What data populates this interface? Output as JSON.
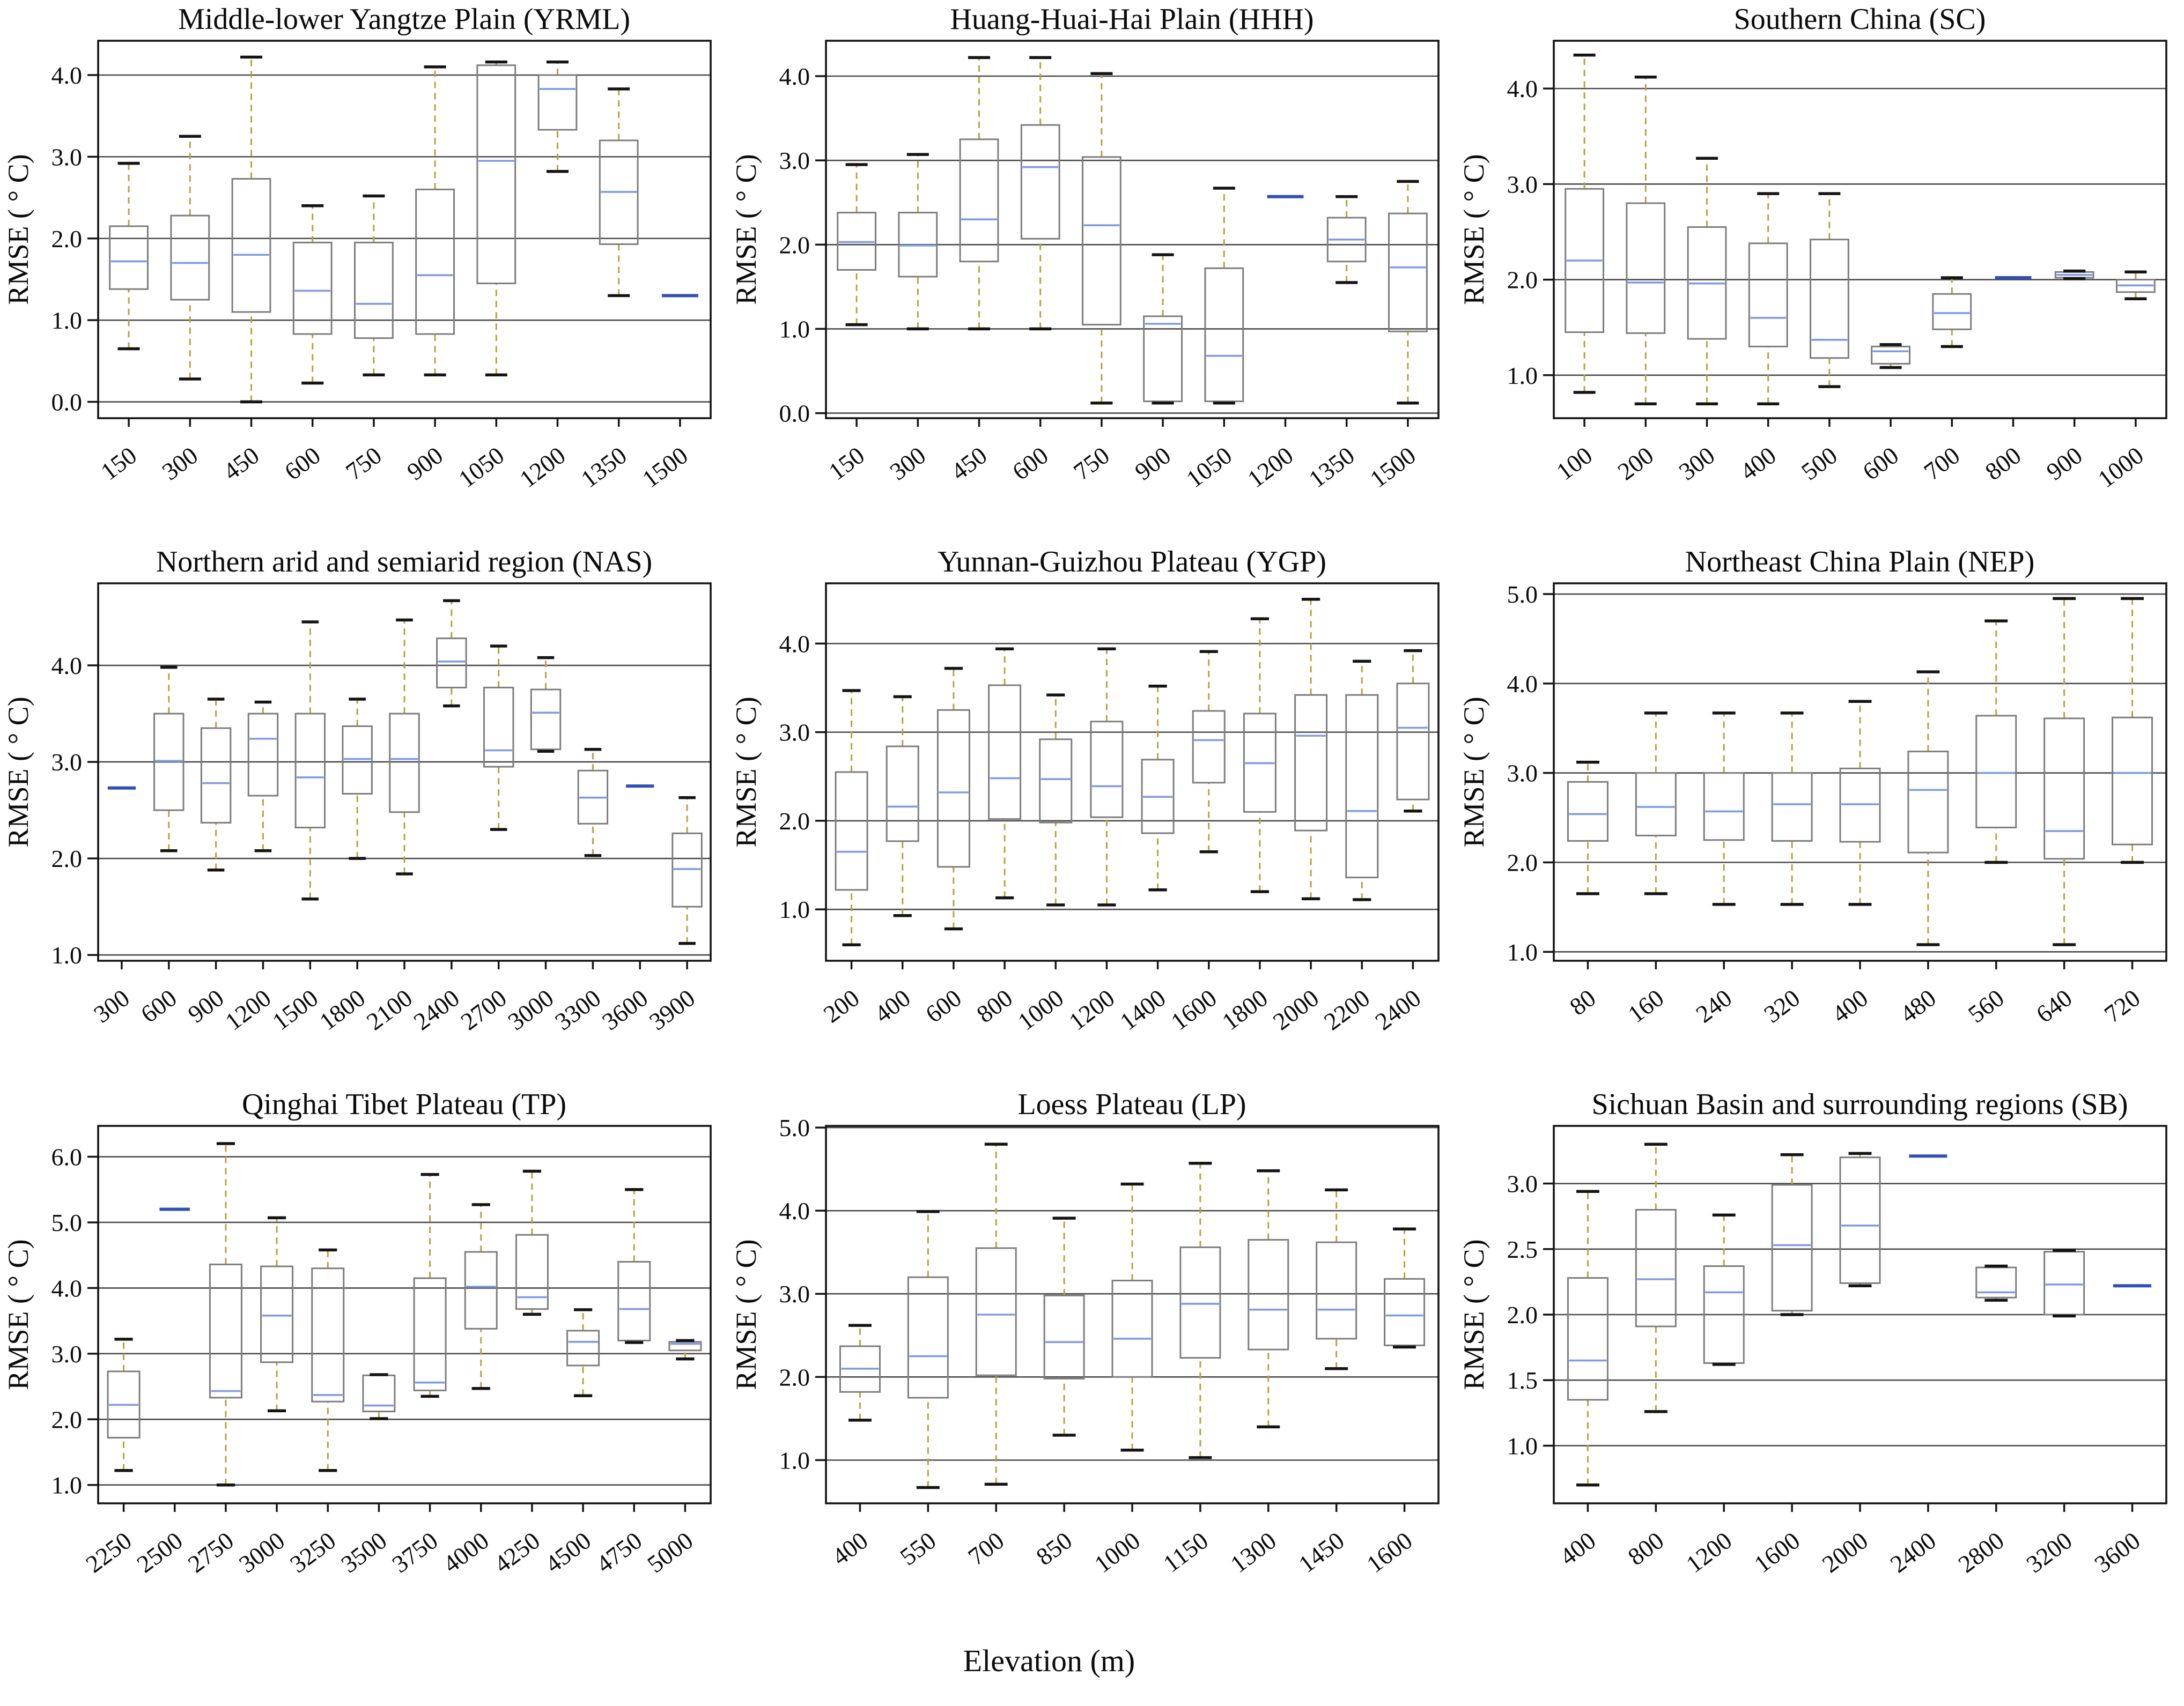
{
  "page": {
    "xlabel": "Elevation (m)",
    "ylabel": "RMSE ( ° C)"
  },
  "colors": {
    "grid": "#4a4a4a",
    "axis": "#141414",
    "box": "#7d7d7d",
    "median": "#7e9be4",
    "whisker": "#b3a43c",
    "cap": "#141414",
    "flat": "#3050b8"
  },
  "chart_data": [
    {
      "type": "box",
      "title": "Middle-lower Yangtze Plain (YRML)",
      "region_code": "YRML",
      "categories": [
        "150",
        "300",
        "450",
        "600",
        "750",
        "900",
        "1050",
        "1200",
        "1350",
        "1500"
      ],
      "ylim": [
        -0.2,
        4.42
      ],
      "yticks": [
        0,
        1,
        2,
        3,
        4
      ],
      "ytick_labels": [
        "0.0",
        "1.0",
        "2.0",
        "3.0",
        "4.0"
      ],
      "boxes": [
        {
          "w_lo": 0.65,
          "q1": 1.38,
          "med": 1.72,
          "q3": 2.15,
          "w_hi": 2.92
        },
        {
          "w_lo": 0.28,
          "q1": 1.25,
          "med": 1.7,
          "q3": 2.28,
          "w_hi": 3.25
        },
        {
          "w_lo": 0.0,
          "q1": 1.1,
          "med": 1.8,
          "q3": 2.73,
          "w_hi": 4.22
        },
        {
          "w_lo": 0.23,
          "q1": 0.83,
          "med": 1.36,
          "q3": 1.95,
          "w_hi": 2.4
        },
        {
          "w_lo": 0.33,
          "q1": 0.78,
          "med": 1.2,
          "q3": 1.95,
          "w_hi": 2.52
        },
        {
          "w_lo": 0.33,
          "q1": 0.83,
          "med": 1.55,
          "q3": 2.6,
          "w_hi": 4.1
        },
        {
          "w_lo": 0.33,
          "q1": 1.45,
          "med": 2.95,
          "q3": 4.12,
          "w_hi": 4.16
        },
        {
          "w_lo": 2.82,
          "q1": 3.33,
          "med": 3.83,
          "q3": 4.0,
          "w_hi": 4.16
        },
        {
          "w_lo": 1.3,
          "q1": 1.93,
          "med": 2.57,
          "q3": 3.2,
          "w_hi": 3.83
        },
        {
          "flat": 1.3
        }
      ]
    },
    {
      "type": "box",
      "title": "Huang-Huai-Hai Plain (HHH)",
      "region_code": "HHH",
      "categories": [
        "150",
        "300",
        "450",
        "600",
        "750",
        "900",
        "1050",
        "1200",
        "1350",
        "1500"
      ],
      "ylim": [
        -0.06,
        4.42
      ],
      "yticks": [
        0,
        1,
        2,
        3,
        4
      ],
      "ytick_labels": [
        "0.0",
        "1.0",
        "2.0",
        "3.0",
        "4.0"
      ],
      "boxes": [
        {
          "w_lo": 1.05,
          "q1": 1.7,
          "med": 2.03,
          "q3": 2.38,
          "w_hi": 2.95
        },
        {
          "w_lo": 1.0,
          "q1": 1.62,
          "med": 1.99,
          "q3": 2.38,
          "w_hi": 3.07
        },
        {
          "w_lo": 1.0,
          "q1": 1.8,
          "med": 2.3,
          "q3": 3.25,
          "w_hi": 4.22
        },
        {
          "w_lo": 1.0,
          "q1": 2.07,
          "med": 2.92,
          "q3": 3.42,
          "w_hi": 4.22
        },
        {
          "w_lo": 0.12,
          "q1": 1.05,
          "med": 2.23,
          "q3": 3.04,
          "w_hi": 4.03
        },
        {
          "w_lo": 0.12,
          "q1": 0.14,
          "med": 1.06,
          "q3": 1.15,
          "w_hi": 1.88
        },
        {
          "w_lo": 0.12,
          "q1": 0.14,
          "med": 0.68,
          "q3": 1.72,
          "w_hi": 2.67
        },
        {
          "flat": 2.57
        },
        {
          "w_lo": 1.55,
          "q1": 1.8,
          "med": 2.06,
          "q3": 2.32,
          "w_hi": 2.57
        },
        {
          "w_lo": 0.12,
          "q1": 0.97,
          "med": 1.73,
          "q3": 2.37,
          "w_hi": 2.75
        }
      ]
    },
    {
      "type": "box",
      "title": "Southern China (SC)",
      "region_code": "SC",
      "categories": [
        "100",
        "200",
        "300",
        "400",
        "500",
        "600",
        "700",
        "800",
        "900",
        "1000"
      ],
      "ylim": [
        0.55,
        4.5
      ],
      "yticks": [
        1,
        2,
        3,
        4
      ],
      "ytick_labels": [
        "1.0",
        "2.0",
        "3.0",
        "4.0"
      ],
      "boxes": [
        {
          "w_lo": 0.82,
          "q1": 1.45,
          "med": 2.2,
          "q3": 2.95,
          "w_hi": 4.35
        },
        {
          "w_lo": 0.7,
          "q1": 1.44,
          "med": 1.97,
          "q3": 2.8,
          "w_hi": 4.12
        },
        {
          "w_lo": 0.7,
          "q1": 1.38,
          "med": 1.96,
          "q3": 2.55,
          "w_hi": 3.27
        },
        {
          "w_lo": 0.7,
          "q1": 1.3,
          "med": 1.6,
          "q3": 2.38,
          "w_hi": 2.9
        },
        {
          "w_lo": 0.88,
          "q1": 1.18,
          "med": 1.37,
          "q3": 2.42,
          "w_hi": 2.9
        },
        {
          "w_lo": 1.08,
          "q1": 1.12,
          "med": 1.25,
          "q3": 1.3,
          "w_hi": 1.32
        },
        {
          "w_lo": 1.3,
          "q1": 1.48,
          "med": 1.65,
          "q3": 1.85,
          "w_hi": 2.02
        },
        {
          "flat": 2.02
        },
        {
          "w_lo": 2.01,
          "q1": 2.02,
          "med": 2.05,
          "q3": 2.08,
          "w_hi": 2.09
        },
        {
          "w_lo": 1.8,
          "q1": 1.87,
          "med": 1.94,
          "q3": 2.0,
          "w_hi": 2.08
        }
      ]
    },
    {
      "type": "box",
      "title": "Northern arid and semiarid region (NAS)",
      "region_code": "NAS",
      "categories": [
        "300",
        "600",
        "900",
        "1200",
        "1500",
        "1800",
        "2100",
        "2400",
        "2700",
        "3000",
        "3300",
        "3600",
        "3900"
      ],
      "ylim": [
        0.94,
        4.85
      ],
      "yticks": [
        1,
        2,
        3,
        4
      ],
      "ytick_labels": [
        "1.0",
        "2.0",
        "3.0",
        "4.0"
      ],
      "boxes": [
        {
          "flat": 2.73
        },
        {
          "w_lo": 2.08,
          "q1": 2.5,
          "med": 3.01,
          "q3": 3.5,
          "w_hi": 3.98
        },
        {
          "w_lo": 1.88,
          "q1": 2.37,
          "med": 2.78,
          "q3": 3.35,
          "w_hi": 3.65
        },
        {
          "w_lo": 2.08,
          "q1": 2.65,
          "med": 3.24,
          "q3": 3.5,
          "w_hi": 3.62
        },
        {
          "w_lo": 1.58,
          "q1": 2.32,
          "med": 2.84,
          "q3": 3.5,
          "w_hi": 4.45
        },
        {
          "w_lo": 2.0,
          "q1": 2.67,
          "med": 3.03,
          "q3": 3.37,
          "w_hi": 3.65
        },
        {
          "w_lo": 1.84,
          "q1": 2.48,
          "med": 3.03,
          "q3": 3.5,
          "w_hi": 4.47
        },
        {
          "w_lo": 3.58,
          "q1": 3.77,
          "med": 4.04,
          "q3": 4.28,
          "w_hi": 4.67
        },
        {
          "w_lo": 2.3,
          "q1": 2.95,
          "med": 3.12,
          "q3": 3.77,
          "w_hi": 4.2
        },
        {
          "w_lo": 3.11,
          "q1": 3.13,
          "med": 3.51,
          "q3": 3.75,
          "w_hi": 4.08
        },
        {
          "w_lo": 2.03,
          "q1": 2.36,
          "med": 2.63,
          "q3": 2.91,
          "w_hi": 3.13
        },
        {
          "flat": 2.75
        },
        {
          "w_lo": 1.12,
          "q1": 1.5,
          "med": 1.89,
          "q3": 2.26,
          "w_hi": 2.63
        }
      ]
    },
    {
      "type": "box",
      "title": "Yunnan-Guizhou Plateau (YGP)",
      "region_code": "YGP",
      "categories": [
        "200",
        "400",
        "600",
        "800",
        "1000",
        "1200",
        "1400",
        "1600",
        "1800",
        "2000",
        "2200",
        "2400"
      ],
      "ylim": [
        0.42,
        4.68
      ],
      "yticks": [
        1,
        2,
        3,
        4
      ],
      "ytick_labels": [
        "1.0",
        "2.0",
        "3.0",
        "4.0"
      ],
      "boxes": [
        {
          "w_lo": 0.6,
          "q1": 1.22,
          "med": 1.65,
          "q3": 2.55,
          "w_hi": 3.47
        },
        {
          "w_lo": 0.93,
          "q1": 1.77,
          "med": 2.16,
          "q3": 2.84,
          "w_hi": 3.4
        },
        {
          "w_lo": 0.78,
          "q1": 1.48,
          "med": 2.32,
          "q3": 3.25,
          "w_hi": 3.72
        },
        {
          "w_lo": 1.13,
          "q1": 2.02,
          "med": 2.48,
          "q3": 3.53,
          "w_hi": 3.94
        },
        {
          "w_lo": 1.05,
          "q1": 1.98,
          "med": 2.47,
          "q3": 2.92,
          "w_hi": 3.42
        },
        {
          "w_lo": 1.05,
          "q1": 2.04,
          "med": 2.39,
          "q3": 3.12,
          "w_hi": 3.94
        },
        {
          "w_lo": 1.22,
          "q1": 1.86,
          "med": 2.27,
          "q3": 2.69,
          "w_hi": 3.52
        },
        {
          "w_lo": 1.65,
          "q1": 2.43,
          "med": 2.91,
          "q3": 3.24,
          "w_hi": 3.91
        },
        {
          "w_lo": 1.2,
          "q1": 2.1,
          "med": 2.65,
          "q3": 3.21,
          "w_hi": 4.28
        },
        {
          "w_lo": 1.12,
          "q1": 1.89,
          "med": 2.96,
          "q3": 3.42,
          "w_hi": 4.5
        },
        {
          "w_lo": 1.11,
          "q1": 1.36,
          "med": 2.11,
          "q3": 3.42,
          "w_hi": 3.8
        },
        {
          "w_lo": 2.11,
          "q1": 2.24,
          "med": 3.05,
          "q3": 3.55,
          "w_hi": 3.92
        }
      ]
    },
    {
      "type": "box",
      "title": "Northeast China Plain (NEP)",
      "region_code": "NEP",
      "categories": [
        "80",
        "160",
        "240",
        "320",
        "400",
        "480",
        "560",
        "640",
        "720"
      ],
      "ylim": [
        0.9,
        5.12
      ],
      "yticks": [
        1,
        2,
        3,
        4,
        5
      ],
      "ytick_labels": [
        "1.0",
        "2.0",
        "3.0",
        "4.0",
        "5.0"
      ],
      "boxes": [
        {
          "w_lo": 1.65,
          "q1": 2.24,
          "med": 2.54,
          "q3": 2.9,
          "w_hi": 3.12
        },
        {
          "w_lo": 1.65,
          "q1": 2.3,
          "med": 2.62,
          "q3": 3.0,
          "w_hi": 3.67
        },
        {
          "w_lo": 1.53,
          "q1": 2.25,
          "med": 2.57,
          "q3": 3.0,
          "w_hi": 3.67
        },
        {
          "w_lo": 1.53,
          "q1": 2.24,
          "med": 2.65,
          "q3": 3.0,
          "w_hi": 3.67
        },
        {
          "w_lo": 1.53,
          "q1": 2.23,
          "med": 2.65,
          "q3": 3.05,
          "w_hi": 3.8
        },
        {
          "w_lo": 1.08,
          "q1": 2.11,
          "med": 2.81,
          "q3": 3.24,
          "w_hi": 4.13
        },
        {
          "w_lo": 2.0,
          "q1": 2.39,
          "med": 3.0,
          "q3": 3.64,
          "w_hi": 4.7
        },
        {
          "w_lo": 1.08,
          "q1": 2.04,
          "med": 2.35,
          "q3": 3.61,
          "w_hi": 4.95
        },
        {
          "w_lo": 2.0,
          "q1": 2.2,
          "med": 3.0,
          "q3": 3.62,
          "w_hi": 4.95
        }
      ]
    },
    {
      "type": "box",
      "title": "Qinghai Tibet Plateau (TP)",
      "region_code": "TP",
      "categories": [
        "2250",
        "2500",
        "2750",
        "3000",
        "3250",
        "3500",
        "3750",
        "4000",
        "4250",
        "4500",
        "4750",
        "5000"
      ],
      "ylim": [
        0.72,
        6.47
      ],
      "yticks": [
        1,
        2,
        3,
        4,
        5,
        6
      ],
      "ytick_labels": [
        "1.0",
        "2.0",
        "3.0",
        "4.0",
        "5.0",
        "6.0"
      ],
      "boxes": [
        {
          "w_lo": 1.22,
          "q1": 1.72,
          "med": 2.22,
          "q3": 2.73,
          "w_hi": 3.22
        },
        {
          "flat": 5.2
        },
        {
          "w_lo": 1.0,
          "q1": 2.33,
          "med": 2.43,
          "q3": 4.36,
          "w_hi": 6.2
        },
        {
          "w_lo": 2.13,
          "q1": 2.87,
          "med": 3.58,
          "q3": 4.33,
          "w_hi": 5.07
        },
        {
          "w_lo": 1.22,
          "q1": 2.27,
          "med": 2.37,
          "q3": 4.3,
          "w_hi": 4.58
        },
        {
          "w_lo": 2.01,
          "q1": 2.12,
          "med": 2.21,
          "q3": 2.67,
          "w_hi": 2.68
        },
        {
          "w_lo": 2.35,
          "q1": 2.44,
          "med": 2.56,
          "q3": 4.15,
          "w_hi": 5.73
        },
        {
          "w_lo": 2.47,
          "q1": 3.38,
          "med": 4.02,
          "q3": 4.55,
          "w_hi": 5.27
        },
        {
          "w_lo": 3.6,
          "q1": 3.68,
          "med": 3.86,
          "q3": 4.81,
          "w_hi": 5.78
        },
        {
          "w_lo": 2.36,
          "q1": 2.82,
          "med": 3.18,
          "q3": 3.35,
          "w_hi": 3.67
        },
        {
          "w_lo": 3.17,
          "q1": 3.2,
          "med": 3.68,
          "q3": 4.4,
          "w_hi": 5.5
        },
        {
          "w_lo": 2.92,
          "q1": 3.05,
          "med": 3.15,
          "q3": 3.18,
          "w_hi": 3.2
        }
      ]
    },
    {
      "type": "box",
      "title": "Loess Plateau (LP)",
      "region_code": "LP",
      "categories": [
        "400",
        "550",
        "700",
        "850",
        "1000",
        "1150",
        "1300",
        "1450",
        "1600"
      ],
      "ylim": [
        0.48,
        5.02
      ],
      "yticks": [
        1,
        2,
        3,
        4,
        5
      ],
      "ytick_labels": [
        "1.0",
        "2.0",
        "3.0",
        "4.0",
        "5.0"
      ],
      "boxes": [
        {
          "w_lo": 1.48,
          "q1": 1.82,
          "med": 2.1,
          "q3": 2.37,
          "w_hi": 2.62
        },
        {
          "w_lo": 0.67,
          "q1": 1.75,
          "med": 2.25,
          "q3": 3.2,
          "w_hi": 3.99
        },
        {
          "w_lo": 0.71,
          "q1": 2.02,
          "med": 2.75,
          "q3": 3.55,
          "w_hi": 4.8
        },
        {
          "w_lo": 1.3,
          "q1": 1.98,
          "med": 2.42,
          "q3": 2.98,
          "w_hi": 3.91
        },
        {
          "w_lo": 1.12,
          "q1": 2.0,
          "med": 2.46,
          "q3": 3.16,
          "w_hi": 4.32
        },
        {
          "w_lo": 1.03,
          "q1": 2.23,
          "med": 2.88,
          "q3": 3.56,
          "w_hi": 4.57
        },
        {
          "w_lo": 1.4,
          "q1": 2.33,
          "med": 2.81,
          "q3": 3.65,
          "w_hi": 4.48
        },
        {
          "w_lo": 2.1,
          "q1": 2.46,
          "med": 2.81,
          "q3": 3.62,
          "w_hi": 4.25
        },
        {
          "w_lo": 2.36,
          "q1": 2.38,
          "med": 2.74,
          "q3": 3.18,
          "w_hi": 3.78
        }
      ]
    },
    {
      "type": "box",
      "title": "Sichuan Basin and surrounding regions (SB)",
      "region_code": "SB",
      "categories": [
        "400",
        "800",
        "1200",
        "1600",
        "2000",
        "2400",
        "2800",
        "3200",
        "3600"
      ],
      "ylim": [
        0.56,
        3.44
      ],
      "yticks": [
        1.0,
        1.5,
        2.0,
        2.5,
        3.0
      ],
      "ytick_labels": [
        "1.0",
        "1.5",
        "2.0",
        "2.5",
        "3.0"
      ],
      "boxes": [
        {
          "w_lo": 0.7,
          "q1": 1.35,
          "med": 1.65,
          "q3": 2.28,
          "w_hi": 2.94
        },
        {
          "w_lo": 1.26,
          "q1": 1.91,
          "med": 2.27,
          "q3": 2.8,
          "w_hi": 3.3
        },
        {
          "w_lo": 1.62,
          "q1": 1.63,
          "med": 2.17,
          "q3": 2.37,
          "w_hi": 2.76
        },
        {
          "w_lo": 2.0,
          "q1": 2.03,
          "med": 2.53,
          "q3": 2.99,
          "w_hi": 3.22
        },
        {
          "w_lo": 2.22,
          "q1": 2.24,
          "med": 2.68,
          "q3": 3.2,
          "w_hi": 3.23
        },
        {
          "flat": 3.21
        },
        {
          "w_lo": 2.11,
          "q1": 2.13,
          "med": 2.17,
          "q3": 2.36,
          "w_hi": 2.37
        },
        {
          "w_lo": 1.99,
          "q1": 2.0,
          "med": 2.23,
          "q3": 2.48,
          "w_hi": 2.49
        },
        {
          "flat": 2.22
        }
      ]
    }
  ]
}
